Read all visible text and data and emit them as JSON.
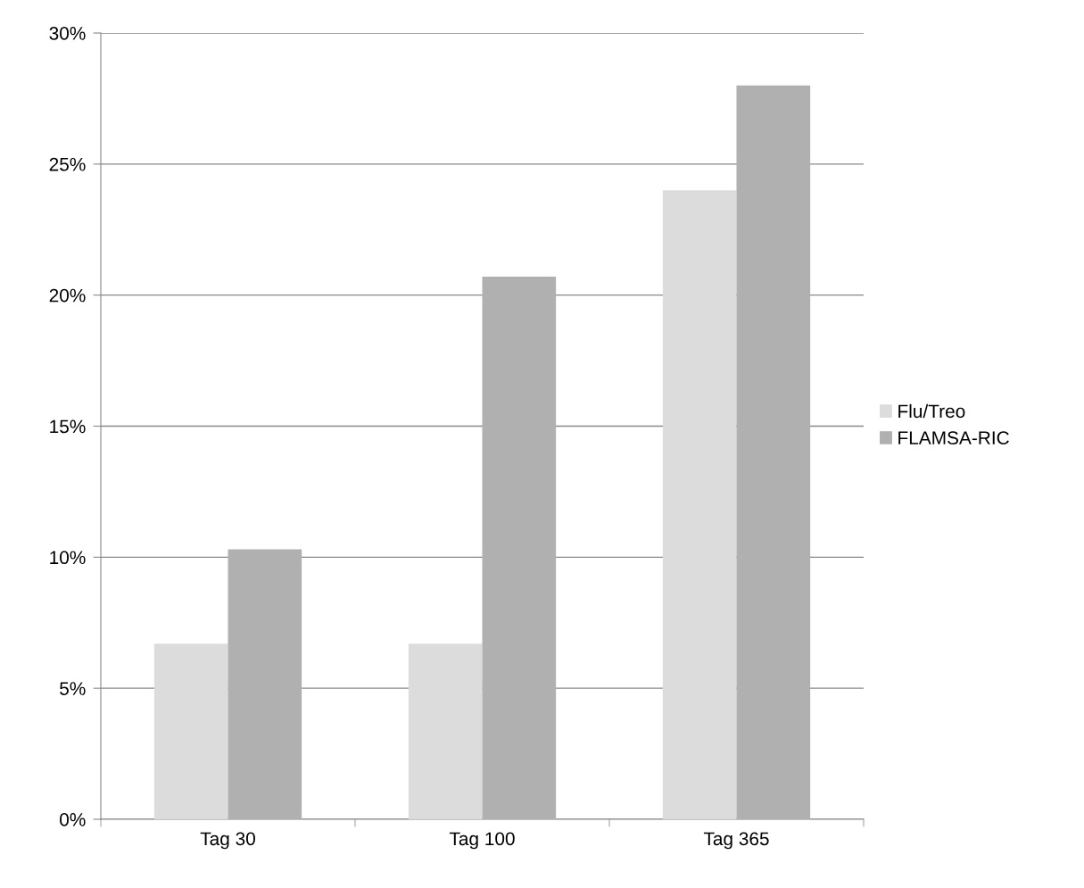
{
  "chart_data": {
    "type": "bar",
    "categories": [
      "Tag 30",
      "Tag 100",
      "Tag 365"
    ],
    "series": [
      {
        "name": "Flu/Treo",
        "color": "#dcdcdc",
        "values": [
          6.7,
          6.7,
          24.0
        ]
      },
      {
        "name": "FLAMSA-RIC",
        "color": "#b0b0b0",
        "values": [
          10.3,
          20.7,
          28.0
        ]
      }
    ],
    "ylim": [
      0,
      30
    ],
    "yticks": [
      {
        "value": 0,
        "label": "0%"
      },
      {
        "value": 5,
        "label": "5%"
      },
      {
        "value": 10,
        "label": "10%"
      },
      {
        "value": 15,
        "label": "15%"
      },
      {
        "value": 20,
        "label": "20%"
      },
      {
        "value": 25,
        "label": "25%"
      },
      {
        "value": 30,
        "label": "30%"
      }
    ],
    "grid": "y",
    "legend": "right"
  }
}
